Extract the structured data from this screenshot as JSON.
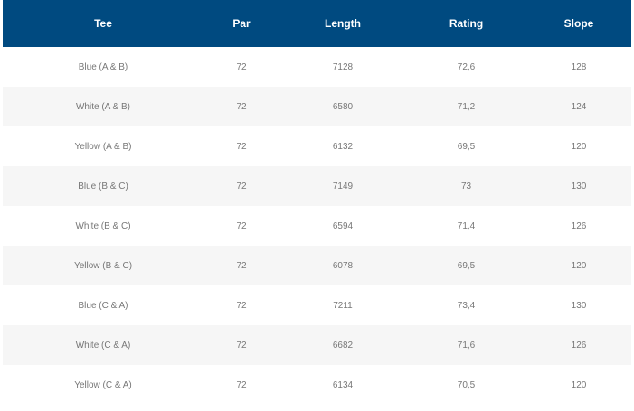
{
  "colors": {
    "header_bg": "#004a80",
    "header_text": "#ffffff",
    "row_alt_bg": "#f6f6f6",
    "cell_text": "#777777"
  },
  "table": {
    "headers": [
      "Tee",
      "Par",
      "Length",
      "Rating",
      "Slope"
    ],
    "rows": [
      [
        "Blue (A & B)",
        "72",
        "7128",
        "72,6",
        "128"
      ],
      [
        "White (A & B)",
        "72",
        "6580",
        "71,2",
        "124"
      ],
      [
        "Yellow (A & B)",
        "72",
        "6132",
        "69,5",
        "120"
      ],
      [
        "Blue (B & C)",
        "72",
        "7149",
        "73",
        "130"
      ],
      [
        "White (B & C)",
        "72",
        "6594",
        "71,4",
        "126"
      ],
      [
        "Yellow (B & C)",
        "72",
        "6078",
        "69,5",
        "120"
      ],
      [
        "Blue (C & A)",
        "72",
        "7211",
        "73,4",
        "130"
      ],
      [
        "White (C & A)",
        "72",
        "6682",
        "71,6",
        "126"
      ],
      [
        "Yellow (C & A)",
        "72",
        "6134",
        "70,5",
        "120"
      ]
    ]
  }
}
